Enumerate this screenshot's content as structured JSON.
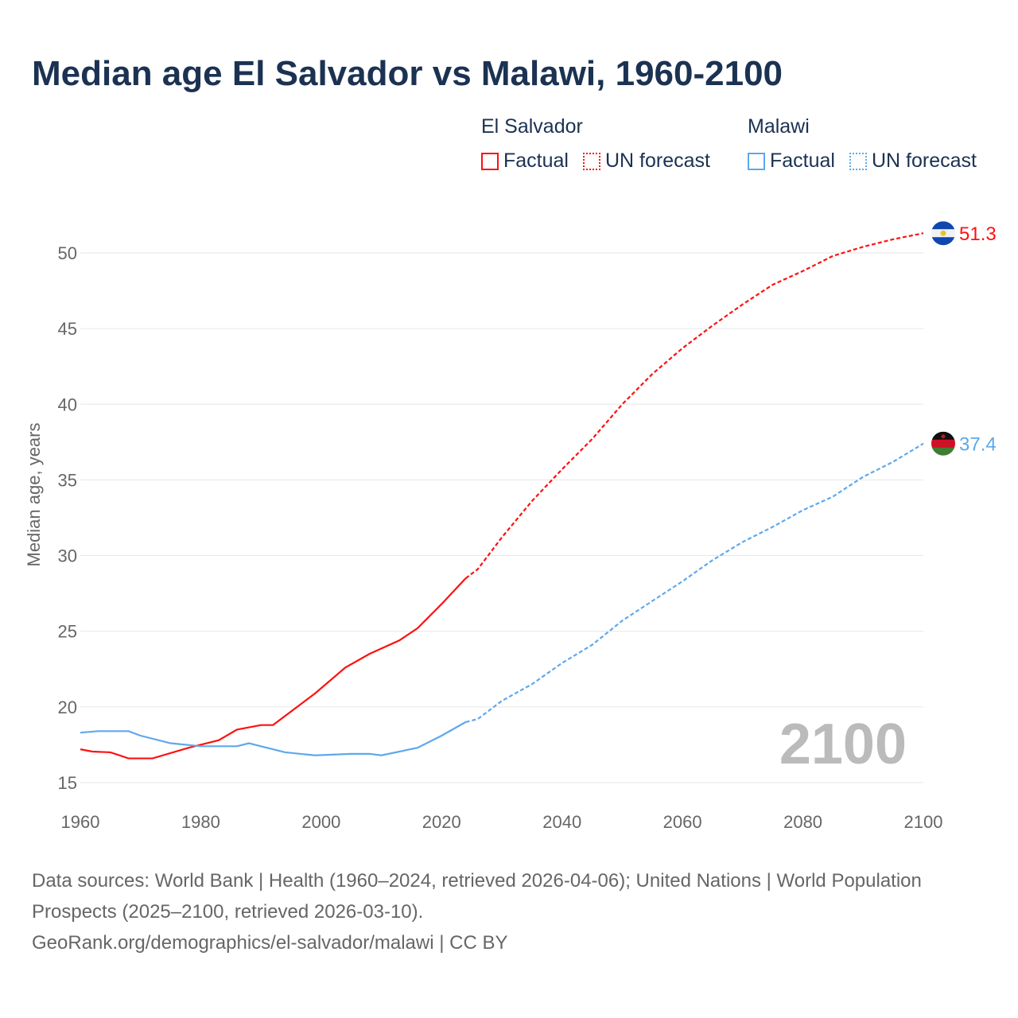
{
  "title": "Median age El Salvador vs Malawi, 1960-2100",
  "legend": {
    "groups": [
      {
        "name": "El Salvador",
        "color": "#ff1010",
        "factual": "Factual",
        "forecast": "UN forecast"
      },
      {
        "name": "Malawi",
        "color": "#5ea8ec",
        "factual": "Factual",
        "forecast": "UN forecast"
      }
    ]
  },
  "year_overlay": "2100",
  "footer": {
    "sources": "Data sources: World Bank | Health (1960–2024, retrieved 2026-04-06); United Nations | World Population Prospects (2025–2100, retrieved 2026-03-10).",
    "link": "GeoRank.org/demographics/el-salvador/malawi | CC BY"
  },
  "chart_data": {
    "type": "line",
    "title": "Median age El Salvador vs Malawi, 1960-2100",
    "xlabel": "",
    "ylabel": "Median age, years",
    "xlim": [
      1960,
      2100
    ],
    "ylim": [
      15,
      52
    ],
    "xticks": [
      "1960",
      "1980",
      "2000",
      "2020",
      "2040",
      "2060",
      "2080",
      "2100"
    ],
    "yticks": [
      "15",
      "20",
      "25",
      "30",
      "35",
      "40",
      "45",
      "50"
    ],
    "grid": true,
    "series": [
      {
        "name": "El Salvador",
        "color": "#ff1010",
        "end_label": "51.3",
        "factual": {
          "x": [
            1960,
            1962,
            1965,
            1968,
            1972,
            1978,
            1983,
            1986,
            1990,
            1992,
            1996,
            1999,
            2004,
            2008,
            2013,
            2016,
            2020,
            2024
          ],
          "y": [
            17.2,
            17.05,
            17.0,
            16.6,
            16.6,
            17.3,
            17.8,
            18.5,
            18.8,
            18.8,
            20.0,
            20.9,
            22.6,
            23.5,
            24.4,
            25.2,
            26.8,
            28.5
          ]
        },
        "forecast": {
          "x": [
            2024,
            2026,
            2030,
            2035,
            2040,
            2045,
            2050,
            2055,
            2060,
            2065,
            2070,
            2075,
            2080,
            2085,
            2090,
            2095,
            2100
          ],
          "y": [
            28.5,
            29.1,
            31.2,
            33.6,
            35.7,
            37.7,
            40.0,
            42.0,
            43.7,
            45.2,
            46.6,
            47.9,
            48.8,
            49.8,
            50.4,
            50.9,
            51.3
          ]
        }
      },
      {
        "name": "Malawi",
        "color": "#5ea8ec",
        "end_label": "37.4",
        "factual": {
          "x": [
            1960,
            1963,
            1968,
            1970,
            1975,
            1980,
            1986,
            1988,
            1994,
            1999,
            2005,
            2008,
            2010,
            2016,
            2020,
            2024
          ],
          "y": [
            18.3,
            18.4,
            18.4,
            18.1,
            17.6,
            17.4,
            17.4,
            17.6,
            17.0,
            16.8,
            16.9,
            16.9,
            16.8,
            17.3,
            18.1,
            19.0
          ]
        },
        "forecast": {
          "x": [
            2024,
            2026,
            2030,
            2035,
            2040,
            2045,
            2050,
            2055,
            2060,
            2065,
            2070,
            2075,
            2080,
            2085,
            2090,
            2095,
            2100
          ],
          "y": [
            19.0,
            19.2,
            20.4,
            21.5,
            22.9,
            24.1,
            25.7,
            27.0,
            28.3,
            29.7,
            30.9,
            31.9,
            33.0,
            33.9,
            35.2,
            36.2,
            37.4
          ]
        }
      }
    ]
  }
}
